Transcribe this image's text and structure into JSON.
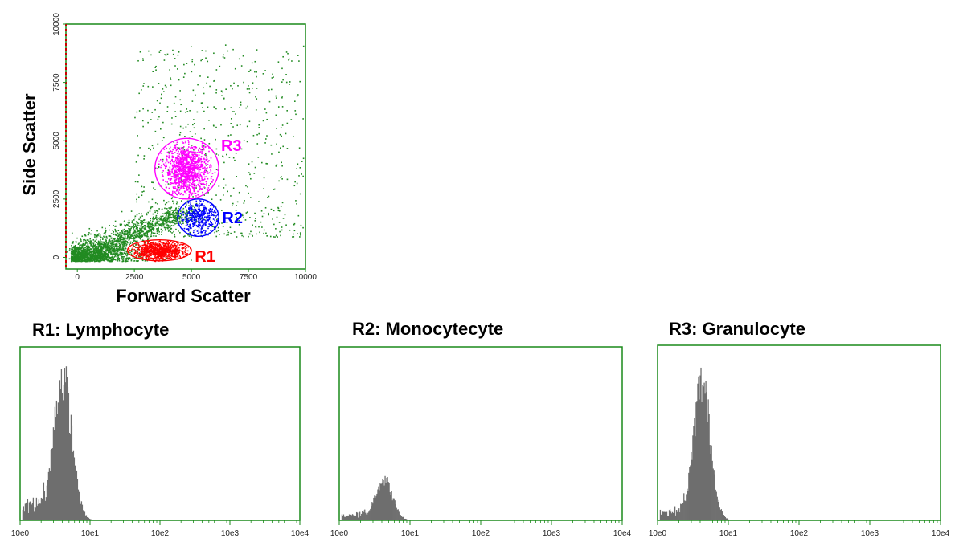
{
  "scatter": {
    "xlabel": "Forward Scatter",
    "ylabel": "Side Scatter",
    "xticks": [
      "0",
      "2500",
      "5000",
      "7500",
      "10000"
    ],
    "yticks": [
      "0",
      "2500",
      "5000",
      "7500",
      "10000"
    ],
    "xlim": [
      -500,
      10000
    ],
    "ylim": [
      -500,
      10000
    ],
    "frame_color": "#1a8a1a",
    "axis_marker_color": "#cc0000",
    "background_color": "#228b22",
    "gates": [
      {
        "label": "R1",
        "color": "#ff0000",
        "cx": 3600,
        "cy": 300,
        "rx": 1400,
        "ry": 450
      },
      {
        "label": "R2",
        "color": "#0000ff",
        "cx": 5300,
        "cy": 1700,
        "rx": 900,
        "ry": 800
      },
      {
        "label": "R3",
        "color": "#ff00ff",
        "cx": 4800,
        "cy": 3800,
        "rx": 1400,
        "ry": 1300
      }
    ]
  },
  "histograms": [
    {
      "title": "R1: Lymphocyte",
      "peak_log": 0.6,
      "spread": 0.13,
      "peak_height": 0.86,
      "shoulder": 0.08
    },
    {
      "title": "R2: Monocytecyte",
      "peak_log": 0.62,
      "spread": 0.12,
      "peak_height": 0.25,
      "shoulder": 0.03
    },
    {
      "title": "R3: Granulocyte",
      "peak_log": 0.62,
      "spread": 0.12,
      "peak_height": 0.82,
      "shoulder": 0.05
    }
  ],
  "hist_axis": {
    "xticks": [
      "10e0",
      "10e1",
      "10e2",
      "10e3",
      "10e4"
    ],
    "xlim": [
      0,
      4
    ],
    "bar_color": "#6e6e6e",
    "frame_color": "#1a8a1a"
  },
  "chart_data": [
    {
      "type": "scatter",
      "xlabel": "Forward Scatter",
      "ylabel": "Side Scatter",
      "xlim": [
        -500,
        10000
      ],
      "ylim": [
        -500,
        10000
      ],
      "series": [
        {
          "name": "R1",
          "cx": 3600,
          "cy": 300
        },
        {
          "name": "R2",
          "cx": 5300,
          "cy": 1700
        },
        {
          "name": "R3",
          "cx": 4800,
          "cy": 3800
        }
      ]
    },
    {
      "type": "bar",
      "title": "R1: Lymphocyte",
      "xlabel": "",
      "x": [
        "10e0",
        "10e1",
        "10e2",
        "10e3",
        "10e4"
      ],
      "peak_x": 4.0
    },
    {
      "type": "bar",
      "title": "R2: Monocytecyte",
      "xlabel": "",
      "x": [
        "10e0",
        "10e1",
        "10e2",
        "10e3",
        "10e4"
      ],
      "peak_x": 4.2
    },
    {
      "type": "bar",
      "title": "R3: Granulocyte",
      "xlabel": "",
      "x": [
        "10e0",
        "10e1",
        "10e2",
        "10e3",
        "10e4"
      ],
      "peak_x": 4.2
    }
  ]
}
